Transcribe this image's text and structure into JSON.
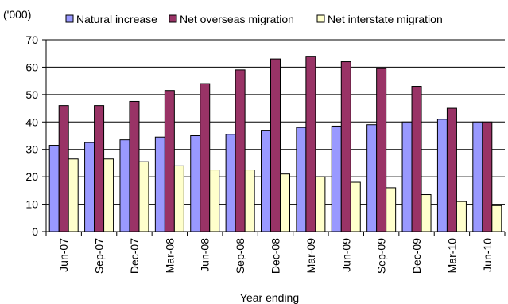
{
  "chart_data": {
    "type": "bar",
    "title": "",
    "unit_label": "('000)",
    "xlabel": "Year ending",
    "ylabel": "",
    "ylim": [
      0,
      70
    ],
    "yticks": [
      0,
      10,
      20,
      30,
      40,
      50,
      60,
      70
    ],
    "grid": true,
    "legend_position": "top",
    "categories": [
      "Jun-07",
      "Sep-07",
      "Dec-07",
      "Mar-08",
      "Jun-08",
      "Sep-08",
      "Dec-08",
      "Mar-09",
      "Jun-09",
      "Sep-09",
      "Dec-09",
      "Mar-10",
      "Jun-10"
    ],
    "series": [
      {
        "name": "Natural increase",
        "color": "#9999ff",
        "values": [
          31.5,
          32.5,
          33.5,
          34.5,
          35,
          35.5,
          37,
          38,
          38.5,
          39,
          40,
          41,
          40
        ]
      },
      {
        "name": "Net overseas migration",
        "color": "#993366",
        "values": [
          46,
          46,
          47.5,
          51.5,
          54,
          59,
          63,
          64,
          62,
          59.5,
          53,
          45,
          40
        ]
      },
      {
        "name": "Net interstate migration",
        "color": "#ffffcc",
        "values": [
          26.5,
          26.5,
          25.5,
          24,
          22.5,
          22.5,
          21,
          20,
          18,
          16,
          13.5,
          11,
          9.5
        ]
      }
    ]
  }
}
